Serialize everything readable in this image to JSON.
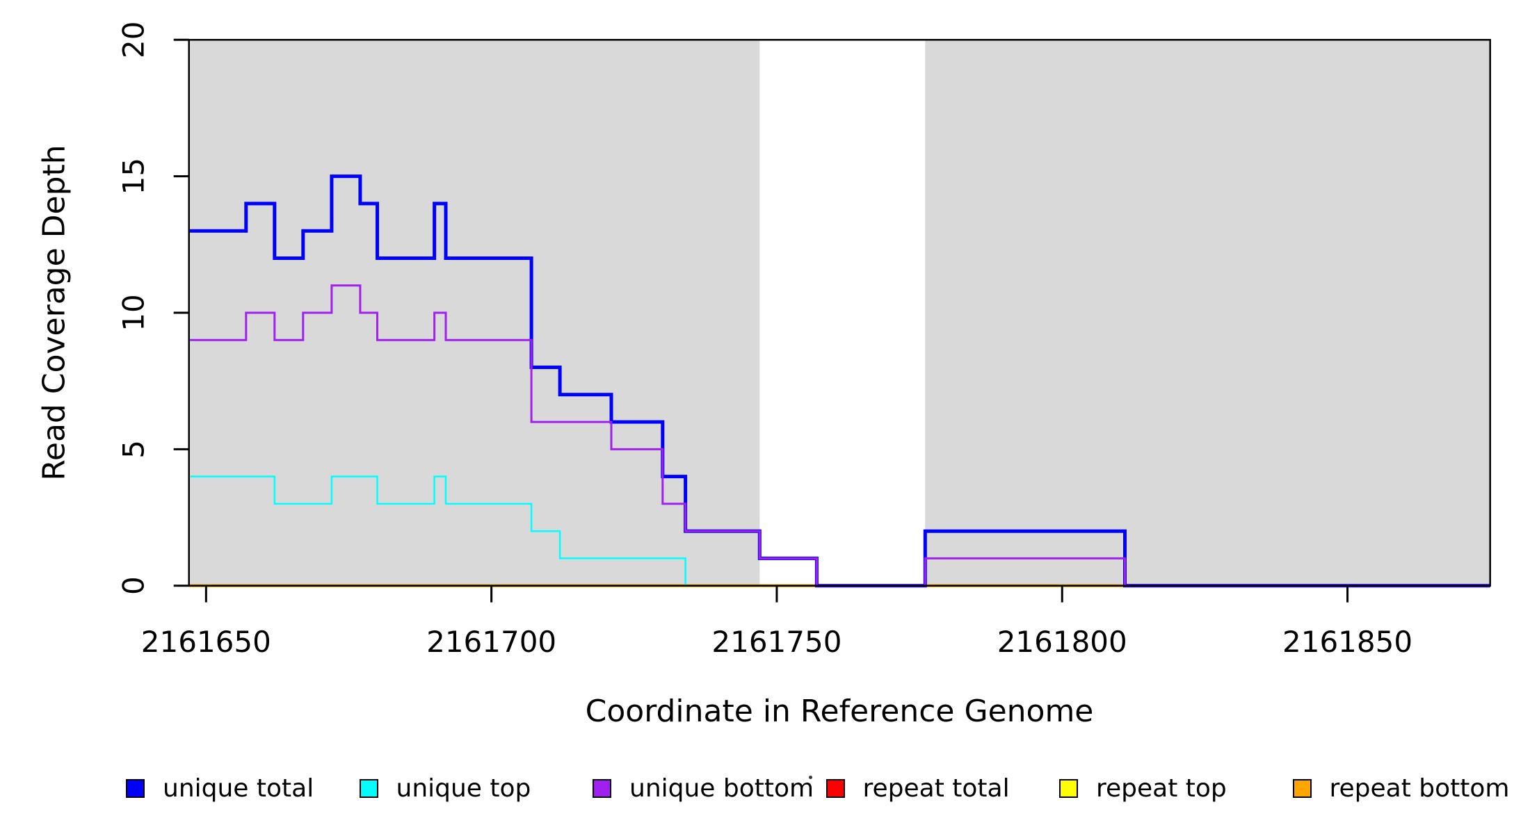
{
  "chart_data": {
    "type": "line",
    "subtype": "step-coverage-plot",
    "xlabel": "Coordinate in Reference Genome",
    "ylabel": "Read Coverage Depth",
    "xlim": [
      2161647,
      2161875
    ],
    "ylim": [
      0,
      20
    ],
    "x_ticks": [
      2161650,
      2161700,
      2161750,
      2161800,
      2161850
    ],
    "y_ticks": [
      0,
      5,
      10,
      15,
      20
    ],
    "grid": false,
    "legend_position": "bottom-horizontal",
    "colors": {
      "unique_total": "#0000FF",
      "unique_top": "#00FFFF",
      "unique_bottom": "#A020F0",
      "repeat_total": "#FF0000",
      "repeat_top": "#FFFF00",
      "repeat_bottom": "#FFA500",
      "shaded_region": "#D9D9D9",
      "axis": "#000000"
    },
    "background_regions": [
      {
        "x_start": 2161647,
        "x_end": 2161747,
        "color": "#D9D9D9"
      },
      {
        "x_start": 2161776,
        "x_end": 2161875,
        "color": "#D9D9D9"
      }
    ],
    "x_breakpoints": [
      2161647,
      2161657,
      2161662,
      2161667,
      2161672,
      2161677,
      2161680,
      2161690,
      2161692,
      2161707,
      2161712,
      2161721,
      2161730,
      2161734,
      2161747,
      2161757,
      2161776,
      2161811,
      2161875
    ],
    "series": [
      {
        "name": "unique total",
        "color": "#0000FF",
        "line_width": 5,
        "values": [
          13,
          14,
          12,
          13,
          15,
          14,
          12,
          14,
          12,
          8,
          7,
          6,
          4,
          2,
          1,
          0,
          2,
          0
        ]
      },
      {
        "name": "unique top",
        "color": "#00FFFF",
        "line_width": 2.5,
        "values": [
          4,
          4,
          3,
          3,
          4,
          4,
          3,
          4,
          3,
          2,
          1,
          1,
          1,
          0,
          0,
          0,
          1,
          0
        ]
      },
      {
        "name": "unique bottom",
        "color": "#A020F0",
        "line_width": 3,
        "values": [
          9,
          10,
          9,
          10,
          11,
          10,
          9,
          10,
          9,
          6,
          6,
          5,
          3,
          2,
          1,
          0,
          1,
          0
        ]
      },
      {
        "name": "repeat total",
        "color": "#FF0000",
        "line_width": 4,
        "values": [
          0,
          0,
          0,
          0,
          0,
          0,
          0,
          0,
          0,
          0,
          0,
          0,
          0,
          0,
          0,
          0,
          0,
          0
        ]
      },
      {
        "name": "repeat top",
        "color": "#FFFF00",
        "line_width": 4,
        "values": [
          0,
          0,
          0,
          0,
          0,
          0,
          0,
          0,
          0,
          0,
          0,
          0,
          0,
          0,
          0,
          0,
          0,
          0
        ]
      },
      {
        "name": "repeat bottom",
        "color": "#FFA500",
        "line_width": 4,
        "values": [
          0,
          0,
          0,
          0,
          0,
          0,
          0,
          0,
          0,
          0,
          0,
          0,
          0,
          0,
          0,
          0,
          0,
          0
        ]
      }
    ],
    "draw_order": [
      "repeat total",
      "repeat top",
      "repeat bottom",
      "unique total",
      "unique top",
      "unique bottom"
    ],
    "legend": [
      {
        "label": "unique total",
        "color": "#0000FF"
      },
      {
        "label": "unique top",
        "color": "#00FFFF"
      },
      {
        "label": "unique bottom",
        "color": "#A020F0"
      },
      {
        "label": "repeat total",
        "color": "#FF0000"
      },
      {
        "label": "repeat top",
        "color": "#FFFF00"
      },
      {
        "label": "repeat bottom",
        "color": "#FFA500"
      }
    ]
  }
}
